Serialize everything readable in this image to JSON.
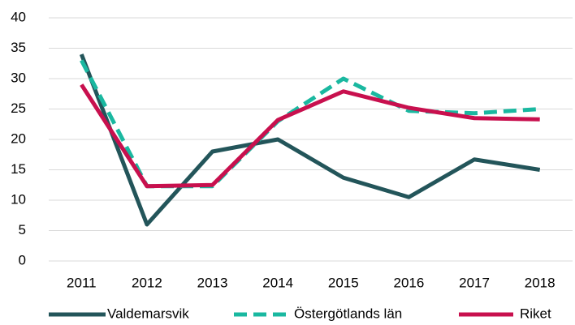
{
  "chart_data": {
    "type": "line",
    "categories": [
      "2011",
      "2012",
      "2013",
      "2014",
      "2015",
      "2016",
      "2017",
      "2018"
    ],
    "series": [
      {
        "name": "Valdemarsvik",
        "color": "#23555a",
        "dash": false,
        "values": [
          34,
          6,
          18,
          20,
          13.7,
          10.5,
          16.7,
          15
        ]
      },
      {
        "name": "Östergötlands län",
        "color": "#1ab8a0",
        "dash": true,
        "values": [
          33,
          12.3,
          12.3,
          23,
          30,
          24.7,
          24.3,
          25
        ]
      },
      {
        "name": "Riket",
        "color": "#c8104e",
        "dash": false,
        "values": [
          29,
          12.3,
          12.5,
          23.2,
          27.9,
          25.2,
          23.5,
          23.3
        ]
      }
    ],
    "ylim": [
      0,
      40
    ],
    "yticks": [
      0,
      5,
      10,
      15,
      20,
      25,
      30,
      35,
      40
    ],
    "grid": true,
    "legend": "bottom"
  }
}
